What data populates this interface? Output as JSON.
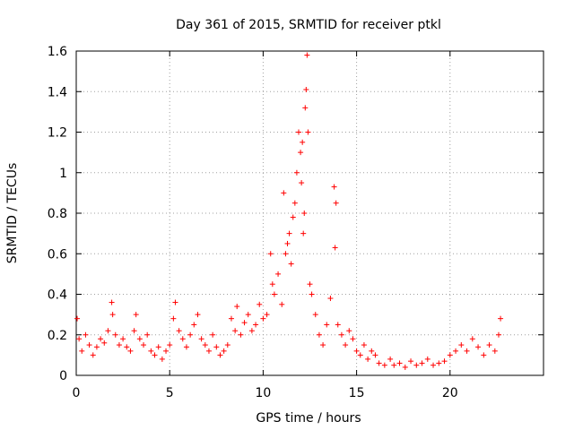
{
  "chart_data": {
    "type": "scatter",
    "title": "Day 361 of 2015, SRMTID for receiver ptkl",
    "xlabel": "GPS time / hours",
    "ylabel": "SRMTID / TECUs",
    "xlim": [
      0,
      25
    ],
    "ylim": [
      0,
      1.6
    ],
    "xticks": [
      0,
      5,
      10,
      15,
      20
    ],
    "xtick_labels": [
      "0",
      "5",
      "10",
      "15",
      "20"
    ],
    "yticks": [
      0,
      0.2,
      0.4,
      0.6,
      0.8,
      1.0,
      1.2,
      1.4,
      1.6
    ],
    "ytick_labels": [
      "0",
      "0.2",
      "0.4",
      "0.6",
      "0.8",
      "1",
      "1.2",
      "1.4",
      "1.6"
    ],
    "grid": true,
    "marker": "+",
    "series_color": "#ff0000",
    "series": [
      {
        "name": "SRMTID",
        "x": [
          0.05,
          0.15,
          0.3,
          0.5,
          0.7,
          0.9,
          1.1,
          1.3,
          1.5,
          1.7,
          1.9,
          1.95,
          2.1,
          2.3,
          2.5,
          2.7,
          2.9,
          3.1,
          3.2,
          3.4,
          3.6,
          3.8,
          4.0,
          4.2,
          4.4,
          4.6,
          4.8,
          5.0,
          5.2,
          5.3,
          5.5,
          5.7,
          5.9,
          6.1,
          6.3,
          6.5,
          6.7,
          6.9,
          7.1,
          7.3,
          7.5,
          7.7,
          7.9,
          8.1,
          8.3,
          8.5,
          8.6,
          8.8,
          9.0,
          9.2,
          9.4,
          9.6,
          9.8,
          10.0,
          10.2,
          10.4,
          10.5,
          10.6,
          10.8,
          11.0,
          11.1,
          11.2,
          11.3,
          11.4,
          11.5,
          11.6,
          11.7,
          11.8,
          11.9,
          12.0,
          12.05,
          12.1,
          12.15,
          12.2,
          12.25,
          12.3,
          12.35,
          12.4,
          12.5,
          12.6,
          12.8,
          13.0,
          13.2,
          13.4,
          13.6,
          13.8,
          13.85,
          13.9,
          14.0,
          14.2,
          14.4,
          14.6,
          14.8,
          15.0,
          15.2,
          15.4,
          15.6,
          15.8,
          16.0,
          16.2,
          16.5,
          16.8,
          17.0,
          17.3,
          17.6,
          17.9,
          18.2,
          18.5,
          18.8,
          19.1,
          19.4,
          19.7,
          20.0,
          20.3,
          20.6,
          20.9,
          21.2,
          21.5,
          21.8,
          22.1,
          22.4,
          22.6,
          22.7
        ],
        "y": [
          0.28,
          0.18,
          0.12,
          0.2,
          0.15,
          0.1,
          0.14,
          0.18,
          0.16,
          0.22,
          0.36,
          0.3,
          0.2,
          0.15,
          0.18,
          0.14,
          0.12,
          0.22,
          0.3,
          0.18,
          0.15,
          0.2,
          0.12,
          0.1,
          0.14,
          0.08,
          0.12,
          0.15,
          0.28,
          0.36,
          0.22,
          0.18,
          0.14,
          0.2,
          0.25,
          0.3,
          0.18,
          0.15,
          0.12,
          0.2,
          0.14,
          0.1,
          0.12,
          0.15,
          0.28,
          0.22,
          0.34,
          0.2,
          0.26,
          0.3,
          0.22,
          0.25,
          0.35,
          0.28,
          0.3,
          0.6,
          0.45,
          0.4,
          0.5,
          0.35,
          0.9,
          0.6,
          0.65,
          0.7,
          0.55,
          0.78,
          0.85,
          1.0,
          1.2,
          1.1,
          0.95,
          1.15,
          0.7,
          0.8,
          1.32,
          1.41,
          1.58,
          1.2,
          0.45,
          0.4,
          0.3,
          0.2,
          0.15,
          0.25,
          0.38,
          0.93,
          0.63,
          0.85,
          0.25,
          0.2,
          0.15,
          0.22,
          0.18,
          0.12,
          0.1,
          0.15,
          0.08,
          0.12,
          0.1,
          0.06,
          0.05,
          0.08,
          0.05,
          0.06,
          0.04,
          0.07,
          0.05,
          0.06,
          0.08,
          0.05,
          0.06,
          0.07,
          0.1,
          0.12,
          0.15,
          0.12,
          0.18,
          0.14,
          0.1,
          0.15,
          0.12,
          0.2,
          0.28
        ]
      }
    ]
  }
}
